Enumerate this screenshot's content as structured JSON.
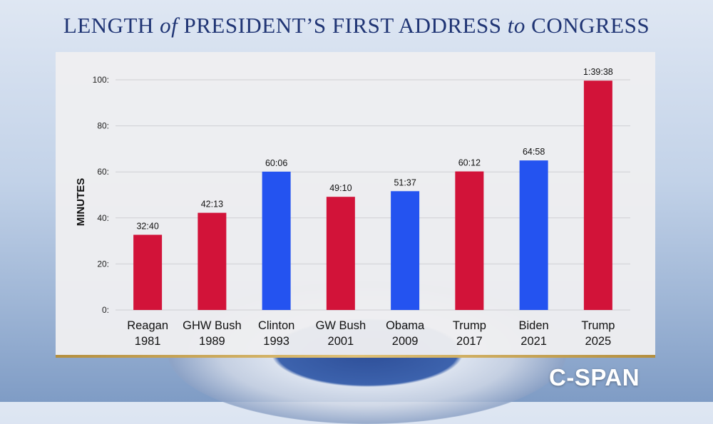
{
  "title_parts": [
    "LENGTH ",
    "of",
    " PRESIDENT’S FIRST ADDRESS ",
    "to",
    " CONGRESS"
  ],
  "logo": "C-SPAN",
  "colors": {
    "republican": "#d21339",
    "democrat": "#2453f0",
    "axis": "#222222",
    "grid": "#cfcfd4"
  },
  "chart_data": {
    "type": "bar",
    "title": "LENGTH of PRESIDENT’S FIRST ADDRESS to CONGRESS",
    "ylabel": "MINUTES",
    "xlabel": "",
    "ylim": [
      0,
      100
    ],
    "yticks": [
      0,
      20,
      40,
      60,
      80,
      100
    ],
    "ytick_labels": [
      "0:",
      "20:",
      "40:",
      "60:",
      "80:",
      "100:"
    ],
    "grid": true,
    "categories": [
      [
        "Reagan",
        "1981"
      ],
      [
        "GHW Bush",
        "1989"
      ],
      [
        "Clinton",
        "1993"
      ],
      [
        "GW Bush",
        "2001"
      ],
      [
        "Obama",
        "2009"
      ],
      [
        "Trump",
        "2017"
      ],
      [
        "Biden",
        "2021"
      ],
      [
        "Trump",
        "2025"
      ]
    ],
    "values": [
      32.67,
      42.22,
      60.1,
      49.17,
      51.62,
      60.2,
      64.97,
      99.63
    ],
    "value_labels": [
      "32:40",
      "42:13",
      "60:06",
      "49:10",
      "51:37",
      "60:12",
      "64:58",
      "1:39:38"
    ],
    "party": [
      "R",
      "R",
      "D",
      "R",
      "D",
      "R",
      "D",
      "R"
    ]
  }
}
